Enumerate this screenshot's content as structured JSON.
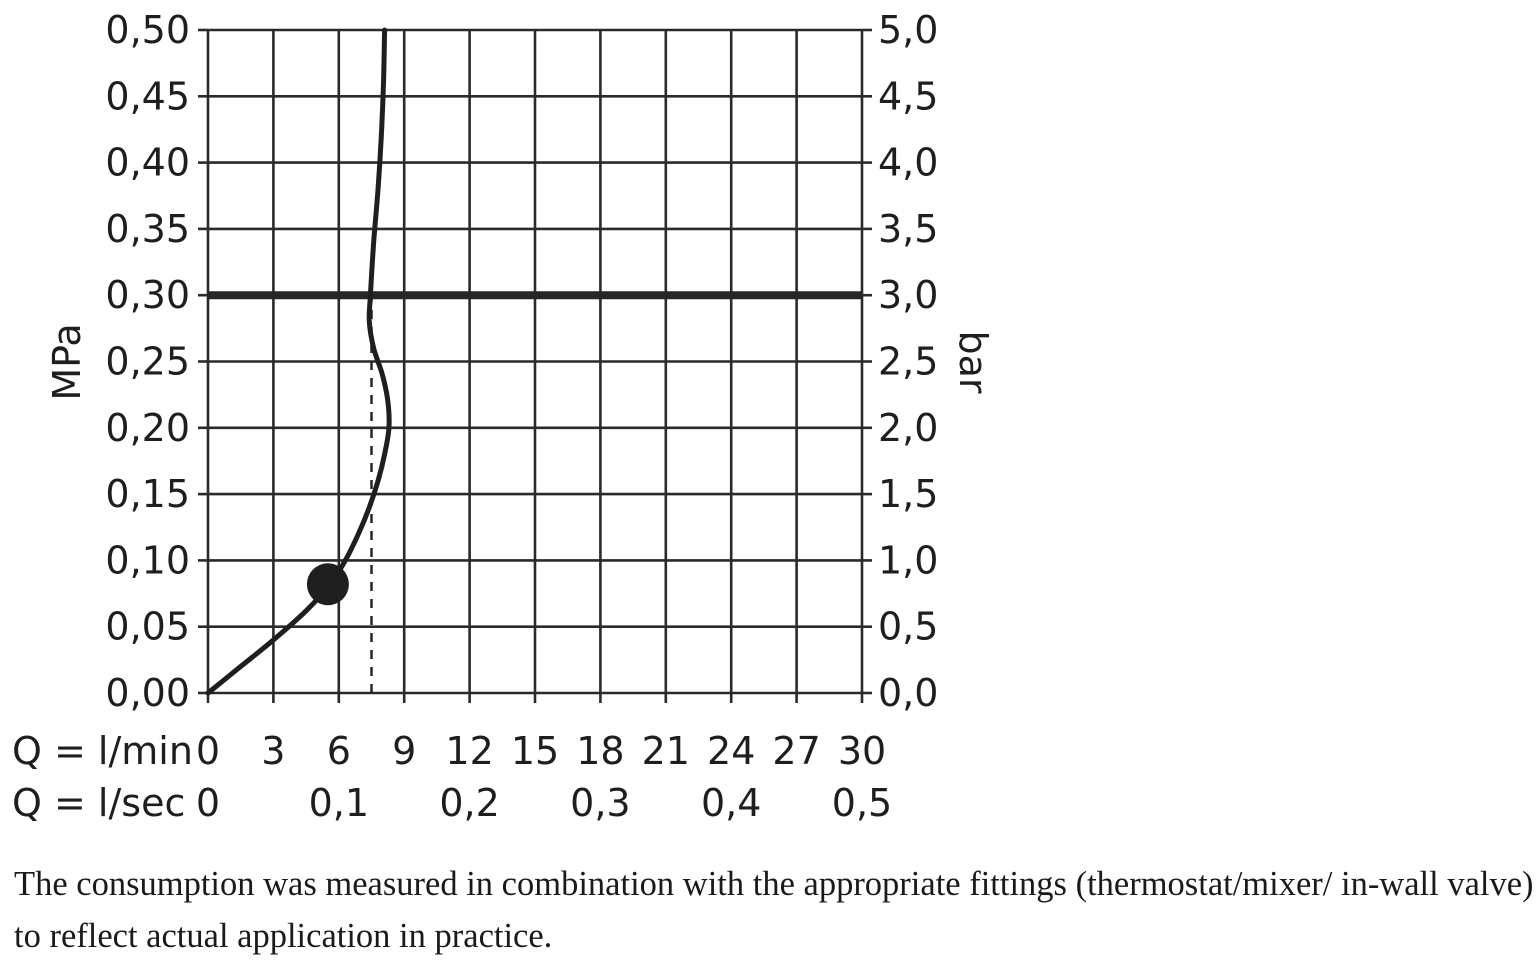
{
  "chart_data": {
    "type": "line",
    "xlabel": "Q = l/min",
    "xlabel_secondary": "Q = l/sec",
    "ylabel": "MPa",
    "ylabel_right": "bar",
    "xlim": [
      0,
      30
    ],
    "ylim": [
      0,
      0.5
    ],
    "x_ticks": [
      "0",
      "3",
      "6",
      "9",
      "12",
      "15",
      "18",
      "21",
      "24",
      "27",
      "30"
    ],
    "x_ticks_secondary": [
      {
        "x": 0,
        "label": "0"
      },
      {
        "x": 6,
        "label": "0,1"
      },
      {
        "x": 12,
        "label": "0,2"
      },
      {
        "x": 18,
        "label": "0,3"
      },
      {
        "x": 24,
        "label": "0,4"
      },
      {
        "x": 30,
        "label": "0,5"
      }
    ],
    "y_ticks": [
      "0,00",
      "0,05",
      "0,10",
      "0,15",
      "0,20",
      "0,25",
      "0,30",
      "0,35",
      "0,40",
      "0,45",
      "0,50"
    ],
    "y_ticks_right": [
      "0,0",
      "0,5",
      "1,0",
      "1,5",
      "2,0",
      "2,5",
      "3,0",
      "3,5",
      "4,0",
      "4,5",
      "5,0"
    ],
    "grid": true,
    "series": [
      {
        "x": [
          0,
          1.5,
          3.0,
          4.5,
          5.6,
          6.3,
          6.9,
          7.4,
          7.8,
          8.1,
          8.3,
          8.25,
          8.0,
          7.6,
          7.4,
          7.45,
          7.6,
          7.8,
          7.95,
          8.05,
          8.1
        ],
        "y": [
          0,
          0.02,
          0.04,
          0.062,
          0.082,
          0.1,
          0.12,
          0.14,
          0.16,
          0.18,
          0.2,
          0.22,
          0.24,
          0.26,
          0.28,
          0.3,
          0.34,
          0.38,
          0.42,
          0.46,
          0.5
        ]
      }
    ],
    "marker_point": {
      "x": 5.5,
      "y": 0.082
    },
    "reference_line": {
      "y": 0.3
    },
    "dashed_line": {
      "x": 7.5,
      "y_range": [
        0,
        0.3
      ]
    }
  },
  "caption": "The consumption was measured in combination with the appropriate fittings (thermostat/mixer/ in-wall valve) to reflect actual application in practice."
}
